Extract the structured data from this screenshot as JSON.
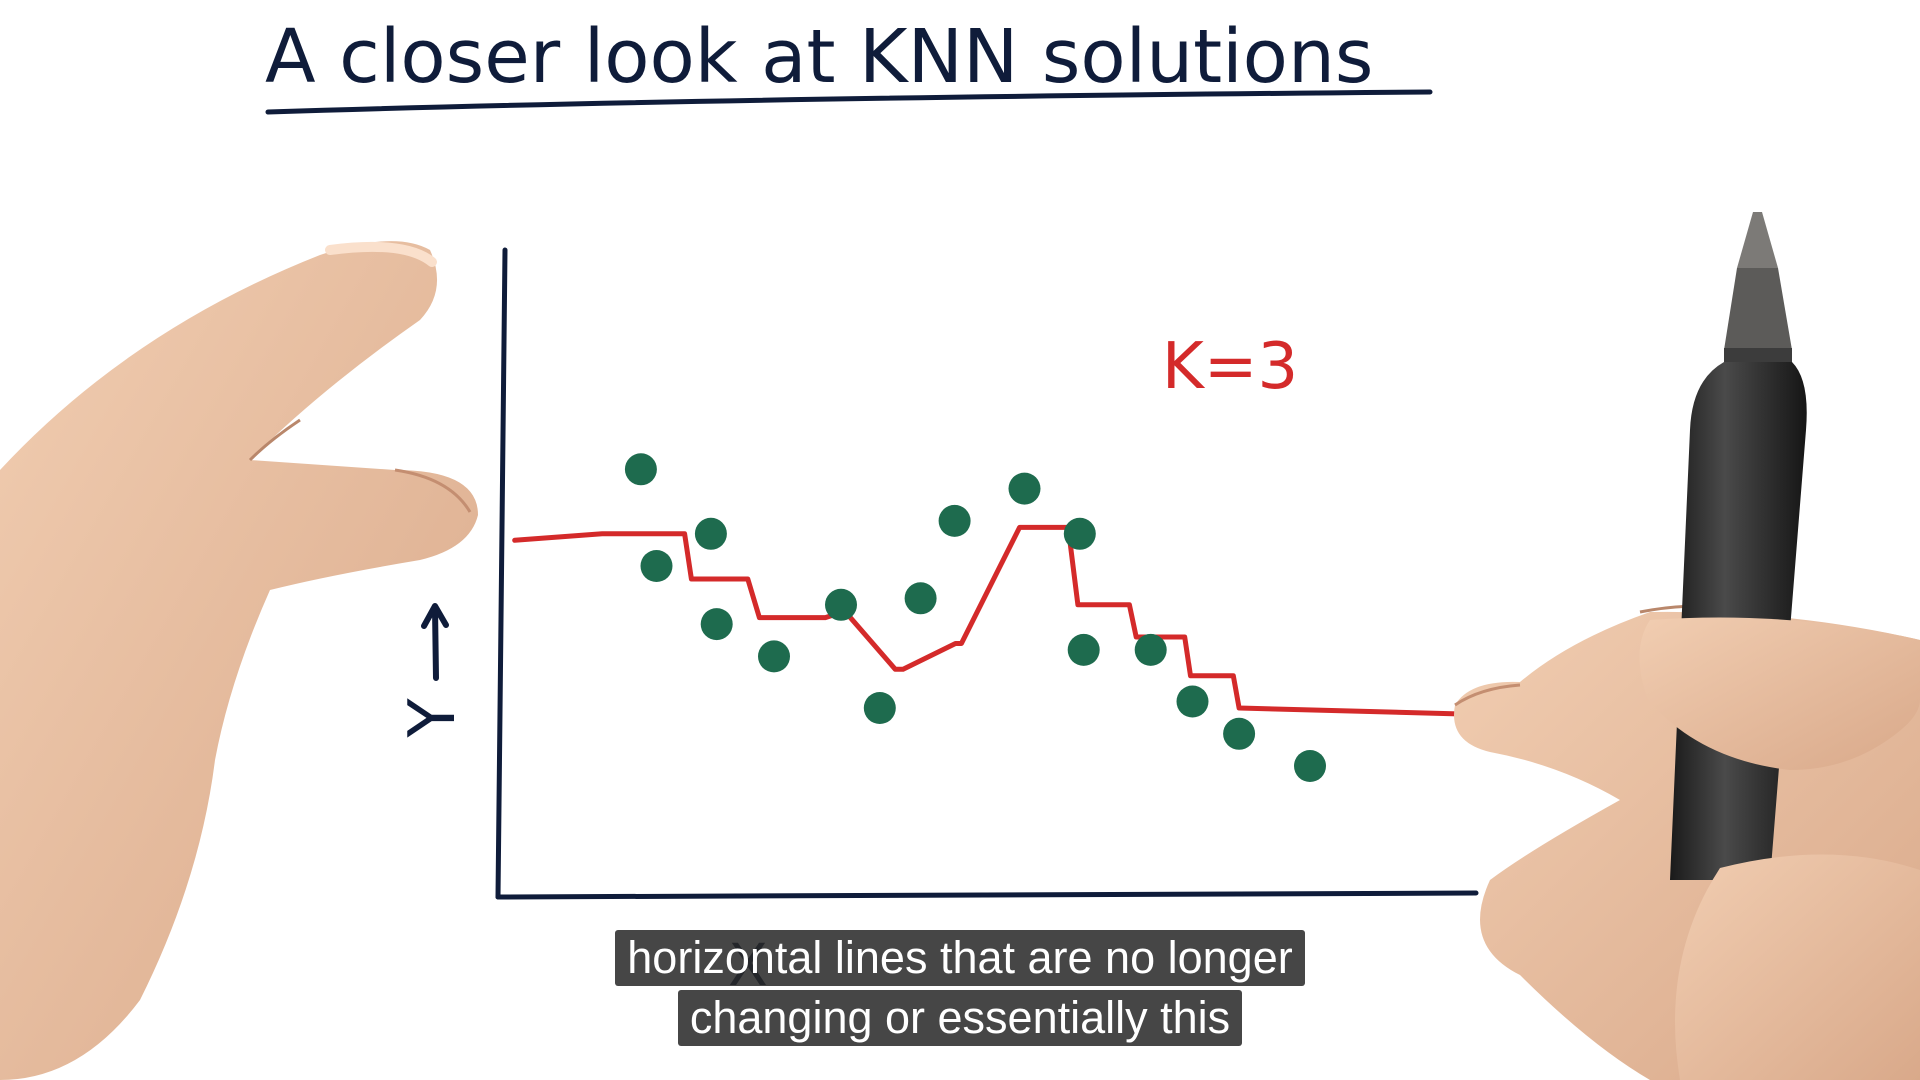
{
  "title": "A closer look at KNN solutions",
  "chart_data": {
    "type": "scatter",
    "title": "A closer look at KNN solutions",
    "xlabel": "X",
    "ylabel": "Y",
    "xlim": [
      0,
      100
    ],
    "ylim": [
      0,
      100
    ],
    "grid": false,
    "annotations": [
      {
        "text": "K=3",
        "color": "#d42a2a"
      }
    ],
    "points": [
      {
        "x": 14,
        "y": 66
      },
      {
        "x": 15.6,
        "y": 51
      },
      {
        "x": 21.2,
        "y": 56
      },
      {
        "x": 21.8,
        "y": 42
      },
      {
        "x": 27.7,
        "y": 37
      },
      {
        "x": 34.6,
        "y": 45
      },
      {
        "x": 38.6,
        "y": 29
      },
      {
        "x": 42.8,
        "y": 46
      },
      {
        "x": 46.3,
        "y": 58
      },
      {
        "x": 53.5,
        "y": 63
      },
      {
        "x": 59.2,
        "y": 56
      },
      {
        "x": 59.6,
        "y": 38
      },
      {
        "x": 66.5,
        "y": 38
      },
      {
        "x": 70.8,
        "y": 30
      },
      {
        "x": 75.6,
        "y": 25
      },
      {
        "x": 82.9,
        "y": 20
      }
    ],
    "series": [
      {
        "type": "step",
        "x": [
          1,
          10,
          18.5,
          19.2,
          25,
          26.2,
          33,
          35,
          40.2,
          41,
          46.4,
          47,
          51,
          53,
          58,
          59,
          64.3,
          65,
          70,
          70.6,
          75,
          75.6,
          100
        ],
        "y": [
          55,
          56,
          56,
          49,
          49,
          43,
          43,
          44,
          35,
          35,
          39,
          39,
          51,
          57,
          57,
          45,
          45,
          40,
          40,
          34,
          34,
          29,
          28
        ]
      }
    ]
  },
  "colors": {
    "axes": "#0f1c3a",
    "points": "#1e6b4e",
    "knn_line": "#d42a2a",
    "skin": "#e0b89a",
    "pen": "#2c2c2c"
  },
  "caption": {
    "line1": "horizontal lines that are no longer",
    "line2": "changing or essentially this"
  }
}
